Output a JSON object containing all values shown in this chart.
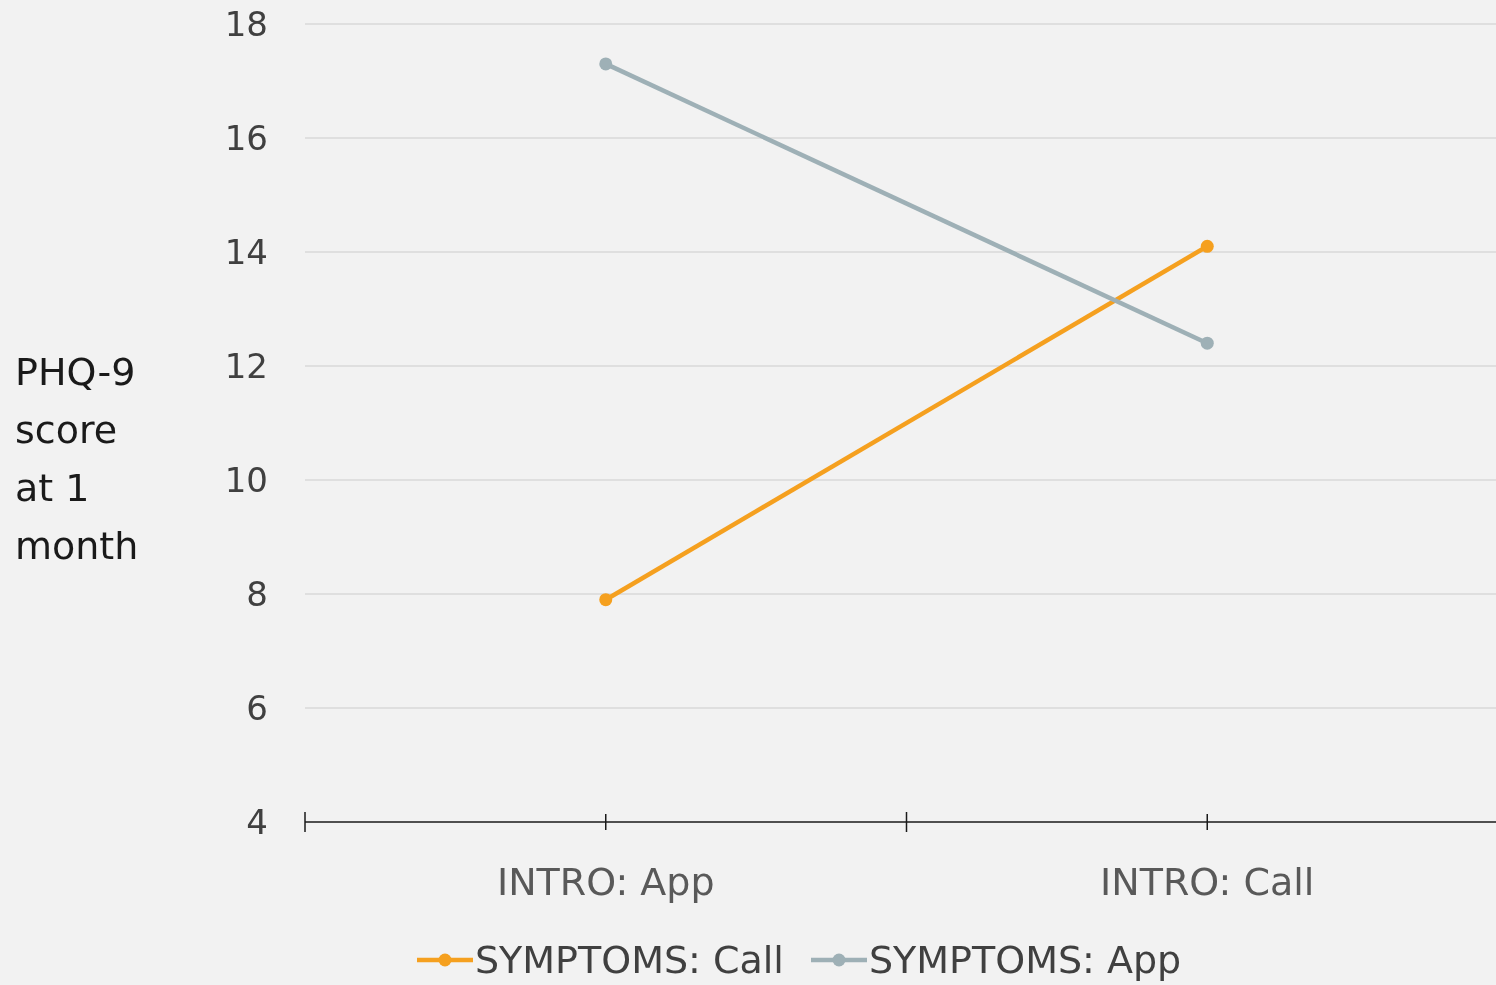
{
  "chart_data": {
    "type": "line",
    "ylabel": "PHQ-9 score at 1 month",
    "categories": [
      "INTRO: App",
      "INTRO: Call"
    ],
    "series": [
      {
        "name": "SYMPTOMS: Call",
        "color": "#f5a01f",
        "values": [
          7.9,
          14.1
        ]
      },
      {
        "name": "SYMPTOMS: App",
        "color": "#9eb0b6",
        "values": [
          17.3,
          12.4
        ]
      }
    ],
    "ylim": [
      4,
      18
    ],
    "yticks": [
      4,
      6,
      8,
      10,
      12,
      14,
      16,
      18
    ],
    "grid": "y",
    "legend": "bottom",
    "marker": "circle"
  }
}
